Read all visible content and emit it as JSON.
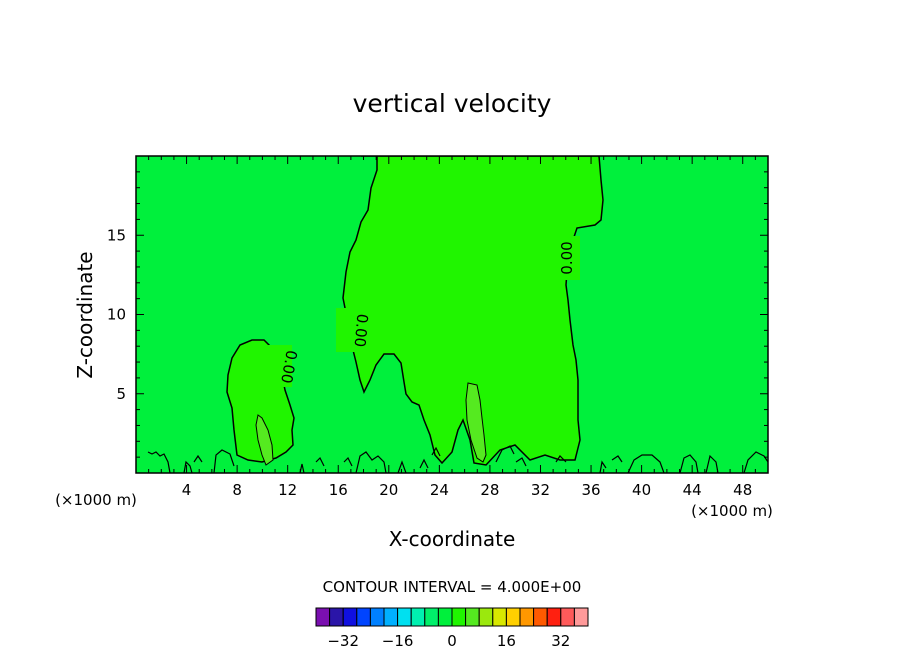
{
  "chart_data": {
    "type": "contour",
    "title": "vertical velocity",
    "xlabel": "X-coordinate",
    "ylabel": "Z-coordinate",
    "xunit_left": "(×1000 m)",
    "xunit_right": "(×1000 m)",
    "xlim": [
      0,
      50
    ],
    "ylim": [
      0,
      20
    ],
    "xticks": [
      4,
      8,
      12,
      16,
      20,
      24,
      28,
      32,
      36,
      40,
      44,
      48
    ],
    "yticks": [
      5,
      10,
      15
    ],
    "grid": false,
    "contour_interval_label": "CONTOUR INTERVAL = 4.000E+00",
    "contour_label": "0.00",
    "background_color": "#00f03c",
    "updraft_color": "#20f500",
    "strong_updraft_color": "#55ea20",
    "colorbar": {
      "tick_labels": [
        "-32",
        "-16",
        "0",
        "16",
        "32"
      ],
      "tick_values": [
        -32,
        -16,
        0,
        16,
        32
      ],
      "min": -40,
      "max": 40,
      "colors": [
        "#7a0fb0",
        "#2a15a8",
        "#1010e0",
        "#0044ff",
        "#0080ff",
        "#00b0ff",
        "#00e0f0",
        "#00f0b0",
        "#00f06a",
        "#00f03c",
        "#20f500",
        "#55ea20",
        "#9be80d",
        "#d8e800",
        "#ffd000",
        "#ff9800",
        "#ff5a00",
        "#ff2010",
        "#ff5a5a",
        "#ff9a9a"
      ]
    }
  }
}
